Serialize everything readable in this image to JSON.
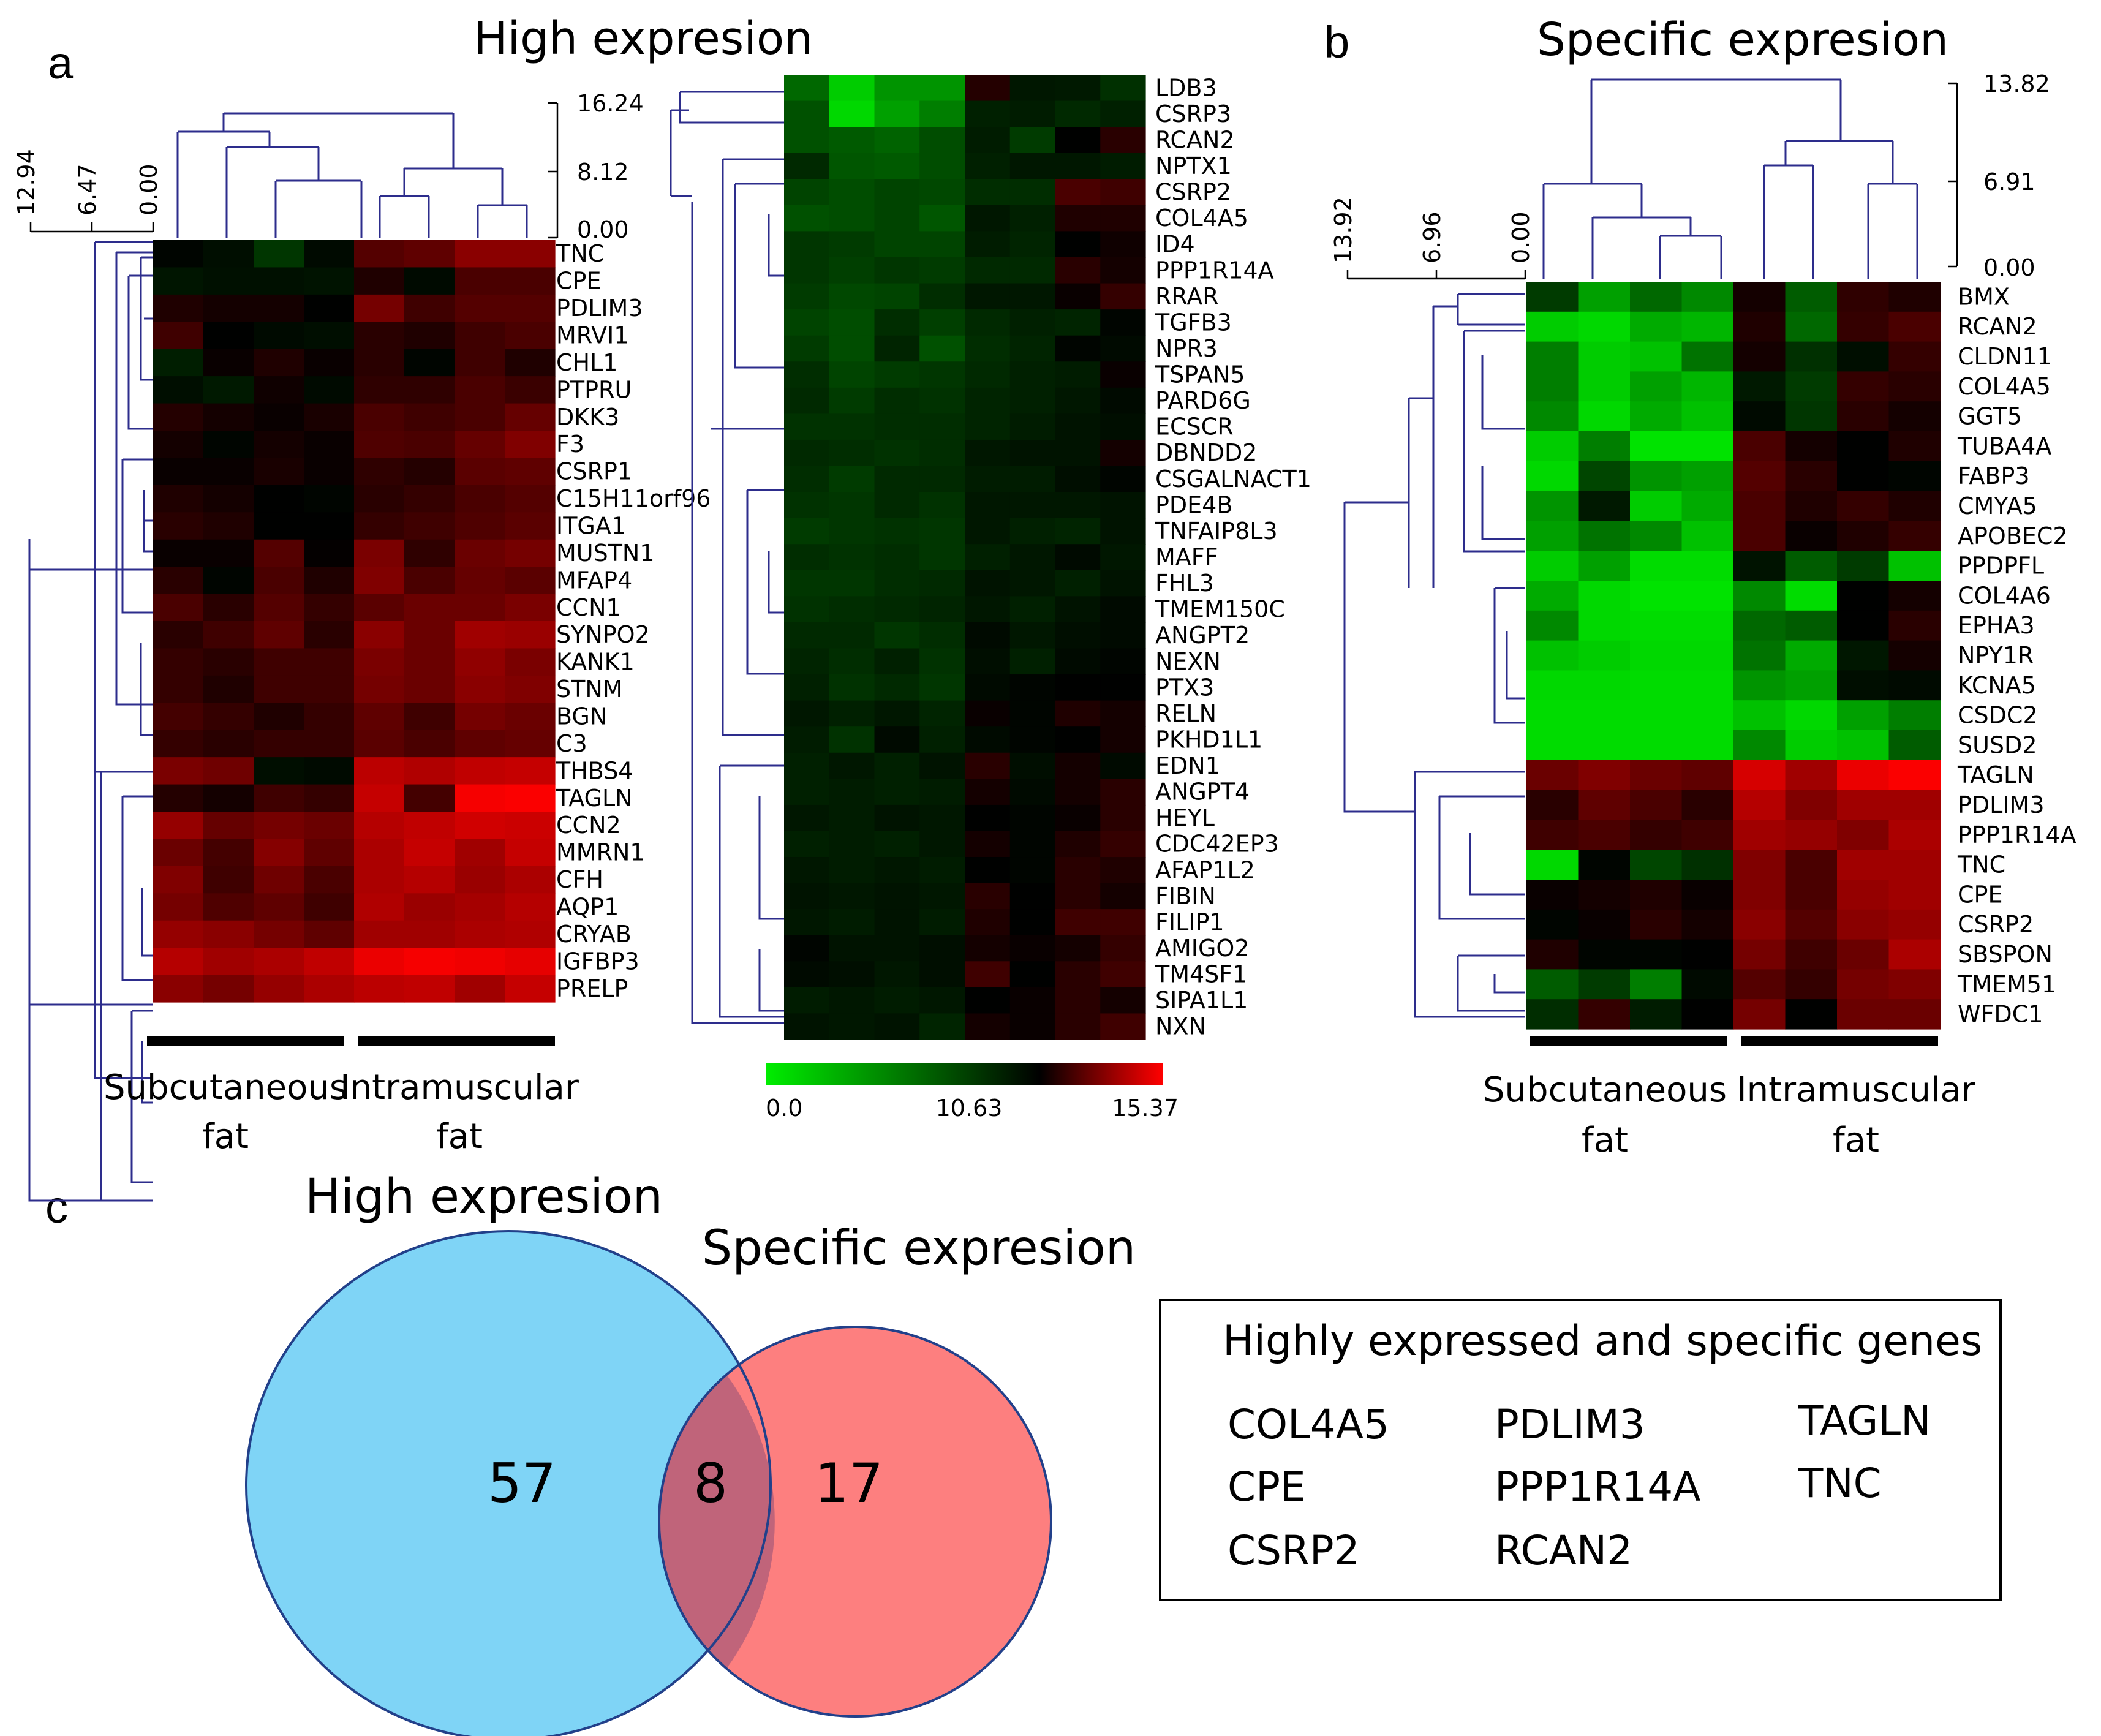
{
  "chart_data": [
    {
      "type": "heatmap",
      "panel": "a",
      "title": "High expresion",
      "colorscale": {
        "min": 0.0,
        "mid": 10.63,
        "max": 15.37,
        "labels": [
          "0.0",
          "10.63",
          "15.37"
        ],
        "colors": [
          "#00ee00",
          "#000000",
          "#ff0000"
        ]
      },
      "row_dendrogram_ticks": [
        "12.94",
        "6.47",
        "0.00"
      ],
      "col_dendrogram_ticks": [
        "16.24",
        "8.12",
        "0.00"
      ],
      "groups": [
        {
          "label_line1": "Subcutaneous",
          "label_line2": "fat"
        },
        {
          "label_line1": "Intramuscular",
          "label_line2": "fat"
        }
      ],
      "genes": [
        "TNC",
        "CPE",
        "PDLIM3",
        "MRVI1",
        "CHL1",
        "PTPRU",
        "DKK3",
        "F3",
        "CSRP1",
        "C15H11orf96",
        "ITGA1",
        "MUSTN1",
        "MFAP4",
        "CCN1",
        "SYNPO2",
        "KANK1",
        "STNM",
        "BGN",
        "C3",
        "THBS4",
        "TAGLN",
        "CCN2",
        "MMRN1",
        "CFH",
        "AQP1",
        "CRYAB",
        "IGFBP3",
        "PRELP"
      ],
      "values": [
        [
          10.4,
          10.0,
          8.2,
          10.2,
          12.2,
          12.4,
          13.2,
          13.2
        ],
        [
          9.7,
          9.9,
          9.9,
          9.8,
          11.2,
          10.2,
          12.0,
          12.0
        ],
        [
          11.2,
          11.0,
          11.0,
          10.6,
          12.8,
          11.8,
          12.2,
          12.2
        ],
        [
          11.8,
          10.6,
          10.2,
          10.0,
          11.4,
          11.2,
          11.8,
          12.0
        ],
        [
          9.3,
          10.8,
          11.2,
          10.8,
          11.4,
          10.4,
          11.8,
          11.2
        ],
        [
          10.0,
          9.5,
          10.9,
          10.2,
          11.5,
          11.5,
          12.0,
          11.7
        ],
        [
          11.3,
          11.0,
          10.8,
          11.1,
          12.0,
          11.8,
          12.0,
          12.5
        ],
        [
          11.0,
          10.4,
          11.0,
          10.8,
          12.1,
          12.0,
          12.5,
          13.0
        ],
        [
          10.8,
          10.8,
          11.1,
          10.8,
          11.5,
          11.3,
          12.3,
          12.4
        ],
        [
          11.2,
          11.0,
          10.6,
          10.4,
          11.4,
          11.6,
          12.0,
          12.2
        ],
        [
          11.4,
          11.2,
          10.6,
          10.6,
          11.6,
          11.8,
          12.1,
          12.3
        ],
        [
          10.8,
          10.8,
          12.2,
          10.7,
          12.9,
          11.5,
          12.6,
          12.8
        ],
        [
          11.4,
          10.4,
          12.0,
          11.2,
          13.0,
          12.0,
          12.5,
          12.3
        ],
        [
          12.0,
          11.4,
          12.2,
          11.6,
          12.3,
          12.6,
          12.6,
          12.9
        ],
        [
          11.4,
          11.8,
          12.4,
          11.4,
          13.2,
          12.6,
          13.6,
          13.5
        ],
        [
          11.6,
          11.4,
          11.8,
          11.8,
          12.9,
          12.6,
          13.3,
          12.9
        ],
        [
          11.6,
          11.2,
          11.8,
          11.8,
          12.8,
          12.6,
          13.2,
          13.0
        ],
        [
          11.9,
          11.6,
          11.2,
          11.6,
          12.4,
          11.8,
          12.8,
          12.6
        ],
        [
          11.6,
          11.4,
          11.6,
          11.6,
          12.3,
          12.0,
          12.4,
          12.5
        ],
        [
          12.9,
          12.7,
          10.0,
          10.2,
          14.1,
          13.9,
          14.2,
          14.3
        ],
        [
          11.3,
          11.0,
          11.8,
          11.6,
          14.3,
          11.9,
          15.2,
          15.3
        ],
        [
          13.4,
          12.5,
          12.8,
          12.6,
          14.0,
          14.2,
          14.5,
          14.4
        ],
        [
          12.6,
          11.9,
          13.1,
          12.4,
          13.8,
          14.3,
          13.6,
          14.3
        ],
        [
          13.0,
          11.8,
          12.7,
          12.0,
          13.8,
          14.0,
          13.5,
          13.8
        ],
        [
          12.8,
          12.1,
          12.4,
          11.8,
          13.9,
          13.5,
          13.7,
          14.0
        ],
        [
          13.4,
          13.2,
          12.8,
          12.4,
          13.6,
          13.6,
          13.8,
          13.9
        ],
        [
          14.0,
          13.6,
          13.8,
          14.2,
          15.0,
          15.2,
          15.1,
          14.9
        ],
        [
          13.2,
          12.8,
          13.4,
          13.8,
          14.1,
          14.2,
          13.6,
          14.3
        ]
      ]
    },
    {
      "type": "heatmap",
      "panel": "a",
      "genes": [
        "LDB3",
        "CSRP3",
        "RCAN2",
        "NPTX1",
        "CSRP2",
        "COL4A5",
        "ID4",
        "PPP1R14A",
        "RRAR",
        "TGFB3",
        "NPR3",
        "TSPAN5",
        "PARD6G",
        "ECSCR",
        "DBNDD2",
        "CSGALNACT1",
        "PDE4B",
        "TNFAIP8L3",
        "MAFF",
        "FHL3",
        "TMEM150C",
        "ANGPT2",
        "NEXN",
        "PTX3",
        "RELN",
        "PKHD1L1",
        "EDN1",
        "ANGPT4",
        "HEYL",
        "CDC42EP3",
        "AFAP1L2",
        "FIBIN",
        "FILIP1",
        "AMIGO2",
        "TM4SF1",
        "SIPA1L1",
        "NXN"
      ],
      "values": [
        [
          6.0,
          1.5,
          4.0,
          4.0,
          11.3,
          9.6,
          9.5,
          8.5
        ],
        [
          7.0,
          1.0,
          3.5,
          5.0,
          9.2,
          9.4,
          8.8,
          9.2
        ],
        [
          7.0,
          6.6,
          6.2,
          7.2,
          9.4,
          8.0,
          10.6,
          11.4
        ],
        [
          8.8,
          6.8,
          6.6,
          7.2,
          9.2,
          9.6,
          9.6,
          9.4
        ],
        [
          7.6,
          7.2,
          7.6,
          7.4,
          8.6,
          8.6,
          12.0,
          11.8
        ],
        [
          7.0,
          7.2,
          7.6,
          6.8,
          9.6,
          9.2,
          11.2,
          11.2
        ],
        [
          8.2,
          8.0,
          7.6,
          7.6,
          9.4,
          9.0,
          10.6,
          10.9
        ],
        [
          8.2,
          7.8,
          8.2,
          8.0,
          8.8,
          8.8,
          11.4,
          11.0
        ],
        [
          8.0,
          7.4,
          7.6,
          8.6,
          9.6,
          9.6,
          10.8,
          11.6
        ],
        [
          7.6,
          7.2,
          8.6,
          7.8,
          8.8,
          9.2,
          9.0,
          10.4
        ],
        [
          8.0,
          7.2,
          9.0,
          7.0,
          8.6,
          9.0,
          10.4,
          10.2
        ],
        [
          8.6,
          7.6,
          8.0,
          8.2,
          8.8,
          9.2,
          9.4,
          10.8
        ],
        [
          8.8,
          8.0,
          8.6,
          8.4,
          9.0,
          9.2,
          9.6,
          10.2
        ],
        [
          8.4,
          8.4,
          8.6,
          8.6,
          9.0,
          9.4,
          9.8,
          10.0
        ],
        [
          8.8,
          8.6,
          8.4,
          8.6,
          9.6,
          9.8,
          9.8,
          11.0
        ],
        [
          8.6,
          8.0,
          8.8,
          8.8,
          9.4,
          9.4,
          10.0,
          10.4
        ],
        [
          8.4,
          8.2,
          8.8,
          8.4,
          9.6,
          9.6,
          9.6,
          9.8
        ],
        [
          8.0,
          8.2,
          8.4,
          8.2,
          9.6,
          9.2,
          9.0,
          9.8
        ],
        [
          8.6,
          8.4,
          8.6,
          8.2,
          9.2,
          9.6,
          10.2,
          9.6
        ],
        [
          8.2,
          8.2,
          8.6,
          8.8,
          9.8,
          9.6,
          9.2,
          9.8
        ],
        [
          8.4,
          8.6,
          8.8,
          9.0,
          9.6,
          9.2,
          9.8,
          10.2
        ],
        [
          8.8,
          8.8,
          8.2,
          8.6,
          10.2,
          9.6,
          10.0,
          10.2
        ],
        [
          9.0,
          8.6,
          9.2,
          8.4,
          10.0,
          9.2,
          10.2,
          10.4
        ],
        [
          9.2,
          8.4,
          8.8,
          8.2,
          10.2,
          10.4,
          10.6,
          10.6
        ],
        [
          9.6,
          9.2,
          9.6,
          9.0,
          10.8,
          10.4,
          11.2,
          11.0
        ],
        [
          9.4,
          8.4,
          10.2,
          9.2,
          10.2,
          10.4,
          10.6,
          11.0
        ],
        [
          9.2,
          9.6,
          9.2,
          9.8,
          11.4,
          10.0,
          11.0,
          10.2
        ],
        [
          9.2,
          9.4,
          9.2,
          9.4,
          11.0,
          10.2,
          11.0,
          11.4
        ],
        [
          9.6,
          9.4,
          9.8,
          9.6,
          10.6,
          10.4,
          10.8,
          11.4
        ],
        [
          9.2,
          9.4,
          9.2,
          9.6,
          11.0,
          10.4,
          11.2,
          11.6
        ],
        [
          9.6,
          9.4,
          9.6,
          9.4,
          10.6,
          10.4,
          11.4,
          11.2
        ],
        [
          9.8,
          9.6,
          9.8,
          9.6,
          11.4,
          10.6,
          11.4,
          11.0
        ],
        [
          9.6,
          9.4,
          9.8,
          9.4,
          11.2,
          10.6,
          11.8,
          11.8
        ],
        [
          10.4,
          9.8,
          9.8,
          10.0,
          11.0,
          10.8,
          11.0,
          11.6
        ],
        [
          10.2,
          10.0,
          9.6,
          10.0,
          11.8,
          10.6,
          11.4,
          11.8
        ],
        [
          9.4,
          9.6,
          9.4,
          9.6,
          10.6,
          10.8,
          11.4,
          11.0
        ],
        [
          9.8,
          9.6,
          9.8,
          9.0,
          11.0,
          10.8,
          11.4,
          11.8
        ]
      ]
    },
    {
      "type": "heatmap",
      "panel": "b",
      "title": "Specific expresion",
      "row_dendrogram_ticks": [
        "13.92",
        "6.96",
        "0.00"
      ],
      "col_dendrogram_ticks": [
        "13.82",
        "6.91",
        "0.00"
      ],
      "groups": [
        {
          "label_line1": "Subcutaneous",
          "label_line2": "fat"
        },
        {
          "label_line1": "Intramuscular",
          "label_line2": "fat"
        }
      ],
      "genes": [
        "BMX",
        "RCAN2",
        "CLDN11",
        "COL4A5",
        "GGT5",
        "TUBA4A",
        "FABP3",
        "CMYA5",
        "APOBEC2",
        "PPDPFL",
        "COL4A6",
        "EPHA3",
        "NPY1R",
        "KCNA5",
        "CSDC2",
        "SUSD2",
        "TAGLN",
        "PDLIM3",
        "PPP1R14A",
        "TNC",
        "CPE",
        "CSRP2",
        "SBSPON",
        "TMEM51",
        "WFDC1"
      ],
      "values": [
        [
          8.0,
          3.5,
          6.0,
          4.5,
          11.0,
          6.5,
          11.5,
          11.2
        ],
        [
          1.5,
          1.0,
          3.0,
          2.5,
          11.2,
          6.0,
          11.6,
          12.0
        ],
        [
          5.0,
          1.5,
          2.0,
          5.5,
          11.0,
          8.5,
          10.0,
          11.6
        ],
        [
          5.0,
          1.5,
          3.5,
          2.5,
          9.5,
          8.0,
          11.6,
          11.4
        ],
        [
          4.5,
          1.0,
          3.0,
          2.0,
          10.2,
          8.2,
          11.4,
          11.0
        ],
        [
          1.5,
          5.0,
          0.5,
          0.5,
          12.0,
          11.0,
          10.6,
          11.2
        ],
        [
          1.0,
          7.5,
          4.0,
          3.5,
          12.2,
          11.4,
          10.6,
          10.4
        ],
        [
          4.0,
          9.5,
          1.5,
          3.0,
          12.0,
          11.2,
          11.6,
          11.2
        ],
        [
          3.5,
          5.5,
          4.5,
          2.0,
          12.0,
          10.8,
          11.2,
          11.6
        ],
        [
          1.5,
          3.5,
          0.8,
          0.8,
          9.8,
          6.5,
          8.0,
          2.0
        ],
        [
          3.0,
          1.0,
          0.5,
          0.5,
          4.5,
          0.8,
          10.6,
          11.0
        ],
        [
          4.5,
          1.0,
          0.8,
          0.8,
          6.0,
          6.5,
          10.6,
          11.4
        ],
        [
          2.0,
          1.5,
          1.0,
          1.0,
          5.5,
          3.0,
          9.6,
          11.0
        ],
        [
          1.0,
          1.0,
          0.8,
          0.8,
          4.0,
          3.5,
          10.0,
          10.2
        ],
        [
          0.8,
          0.8,
          0.8,
          0.8,
          2.0,
          1.0,
          3.5,
          5.0
        ],
        [
          0.8,
          0.8,
          0.8,
          0.8,
          4.5,
          1.5,
          2.0,
          6.5
        ],
        [
          12.6,
          13.0,
          12.6,
          12.4,
          14.6,
          13.6,
          15.0,
          15.3
        ],
        [
          11.4,
          12.4,
          12.0,
          11.4,
          14.0,
          13.0,
          13.6,
          13.6
        ],
        [
          11.8,
          12.0,
          11.6,
          11.8,
          13.6,
          13.4,
          13.0,
          13.8
        ],
        [
          1.0,
          10.4,
          7.5,
          8.5,
          13.0,
          12.0,
          13.6,
          13.6
        ],
        [
          10.8,
          11.0,
          11.2,
          10.8,
          13.0,
          12.0,
          13.4,
          13.6
        ],
        [
          10.4,
          10.8,
          11.4,
          11.0,
          13.2,
          12.2,
          13.2,
          13.4
        ],
        [
          11.2,
          10.4,
          10.4,
          10.6,
          12.8,
          11.8,
          12.6,
          13.8
        ],
        [
          6.5,
          8.0,
          5.0,
          10.2,
          12.2,
          11.6,
          12.8,
          13.0
        ],
        [
          8.6,
          11.6,
          9.4,
          10.6,
          12.8,
          10.6,
          12.6,
          12.6
        ]
      ]
    }
  ],
  "figure": {
    "panel_letters": [
      "a",
      "b",
      "c"
    ],
    "colorbar_labels": [
      "0.0",
      "10.63",
      "15.37"
    ],
    "left_heatmap_ticks": {
      "row": [
        "12.94",
        "6.47",
        "0.00"
      ],
      "col": [
        "16.24",
        "8.12",
        "0.00"
      ]
    },
    "venn": {
      "left_title": "High expresion",
      "right_title": "Specific expresion",
      "left_only": "57",
      "intersection": "8",
      "right_only": "17",
      "left_color": "#7fd4f6",
      "right_color": "#fd7f7f",
      "overlap_color": "#c0647a",
      "edge_color": "#22408a"
    },
    "gene_box": {
      "title": "Highly expressed and specific genes",
      "columns": [
        [
          "COL4A5",
          "CPE",
          "CSRP2"
        ],
        [
          "PDLIM3",
          "PPP1R14A",
          "RCAN2"
        ],
        [
          "TAGLN",
          "TNC"
        ]
      ]
    },
    "group_labels": {
      "left_line1": "Subcutaneous",
      "left_line2": "fat",
      "right_line1": "Intramuscular",
      "right_line2": "fat"
    }
  }
}
